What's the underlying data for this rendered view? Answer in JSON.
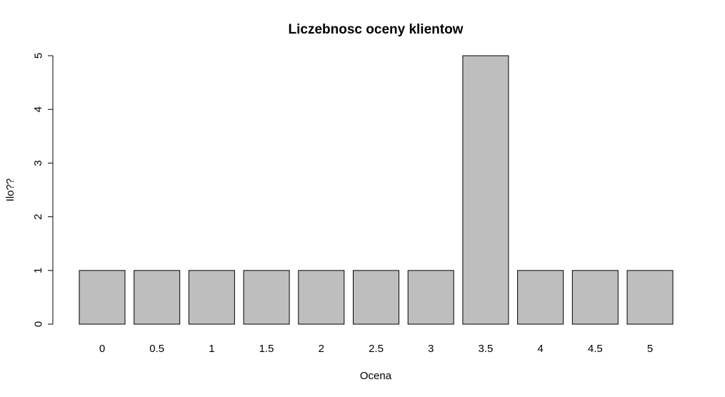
{
  "chart_data": {
    "type": "bar",
    "title": "Liczebnosc oceny klientow",
    "xlabel": "Ocena",
    "ylabel": "Ilo??",
    "categories": [
      "0",
      "0.5",
      "1",
      "1.5",
      "2",
      "2.5",
      "3",
      "3.5",
      "4",
      "4.5",
      "5"
    ],
    "values": [
      1,
      1,
      1,
      1,
      1,
      1,
      1,
      5,
      1,
      1,
      1
    ],
    "ylim": [
      0,
      5
    ],
    "yticks": [
      "0",
      "1",
      "2",
      "3",
      "4",
      "5"
    ],
    "bar_color": "#bebebe",
    "grid": false
  }
}
